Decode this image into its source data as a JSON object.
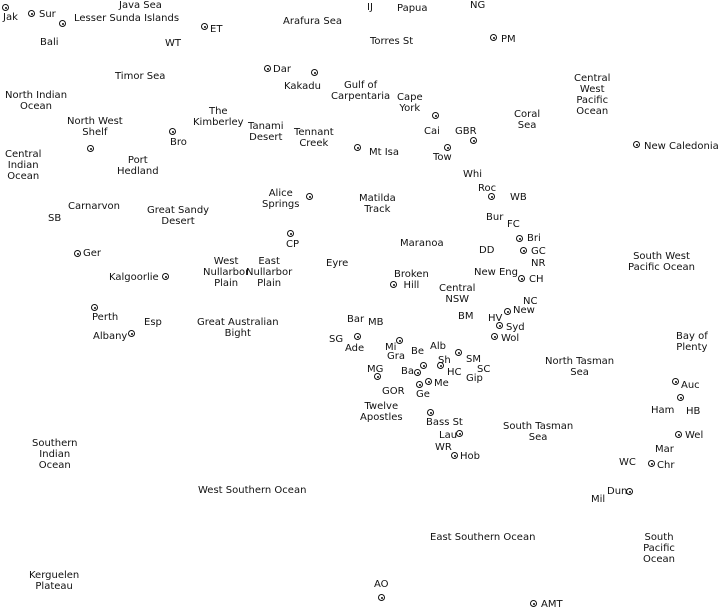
{
  "labels": {
    "java_sea": "Java Sea",
    "ij": "IJ",
    "papua": "Papua",
    "ng": "NG",
    "jak": "Jak",
    "sur": "Sur",
    "lesser_sunda": "Lesser Sunda Islands",
    "et": "ET",
    "arafura": "Arafura Sea",
    "bali": "Bali",
    "wt": "WT",
    "torres": "Torres St",
    "pm": "PM",
    "dar": "Dar",
    "timor": "Timor Sea",
    "kakadu": "Kakadu",
    "gulf": "Gulf of\nCarpentaria",
    "central_west_pacific": "Central\nWest\nPacific\nOcean",
    "north_indian": "North Indian\nOcean",
    "the_kimberley": "The\nKimberley",
    "cape_york": "Cape\nYork",
    "coral_sea": "Coral\nSea",
    "north_west_shelf": "North West\nShelf",
    "tanami": "Tanami\nDesert",
    "tennant": "Tennant\nCreek",
    "cai": "Cai",
    "gbr": "GBR",
    "bro": "Bro",
    "new_caledonia": "New Caledonia",
    "central_indian": "Central\nIndian\nOcean",
    "port_hedland": "Port\nHedland",
    "mt_isa": "Mt Isa",
    "tow": "Tow",
    "whi": "Whi",
    "alice": "Alice\nSprings",
    "roc": "Roc",
    "wb": "WB",
    "matilda": "Matilda\nTrack",
    "carnarvon": "Carnarvon",
    "great_sandy": "Great Sandy\nDesert",
    "sb": "SB",
    "bur": "Bur",
    "fc": "FC",
    "cp": "CP",
    "bri": "Bri",
    "maranoa": "Maranoa",
    "gc": "GC",
    "dd": "DD",
    "ger": "Ger",
    "sw_pacific": "South West\nPacific Ocean",
    "nr": "NR",
    "west_nullarbor": "West\nNullarbor\nPlain",
    "east_nullarbor": "East\nNullarbor\nPlain",
    "eyre": "Eyre",
    "new_eng": "New Eng",
    "ch": "CH",
    "kalgoorlie": "Kalgoorlie",
    "broken_hill": "Broken\nHill",
    "central_nsw": "Central\nNSW",
    "nc": "NC",
    "new": "New",
    "perth": "Perth",
    "esp": "Esp",
    "bar": "Bar",
    "mb": "MB",
    "bm": "BM",
    "hv": "HV",
    "great_australian_bight": "Great Australian\nBight",
    "syd": "Syd",
    "albany": "Albany",
    "sg": "SG",
    "wol": "Wol",
    "bay_of_plenty": "Bay of\nPlenty",
    "ade": "Ade",
    "mi": "Mi",
    "alb": "Alb",
    "be": "Be",
    "gra": "Gra",
    "sm": "SM",
    "sh": "Sh",
    "north_tasman": "North Tasman\nSea",
    "mg": "MG",
    "ba": "Ba",
    "hc": "HC",
    "sc": "SC",
    "me": "Me",
    "gip": "Gip",
    "auc": "Auc",
    "gor": "GOR",
    "ge": "Ge",
    "twelve_apostles": "Twelve\nApostles",
    "ham": "Ham",
    "hb": "HB",
    "southern_indian": "Southern\nIndian\nOcean",
    "bass_st": "Bass St",
    "south_tasman": "South Tasman\nSea",
    "wel": "Wel",
    "lau": "Lau",
    "wr": "WR",
    "mar": "Mar",
    "hob": "Hob",
    "wc": "WC",
    "chr": "Chr",
    "west_southern": "West Southern Ocean",
    "dun": "Dun",
    "mil": "Mil",
    "east_southern": "East Southern Ocean",
    "south_pacific": "South\nPacific\nOcean",
    "kerguelen": "Kerguelen\nPlateau",
    "ao": "AO",
    "amt": "AMT"
  }
}
